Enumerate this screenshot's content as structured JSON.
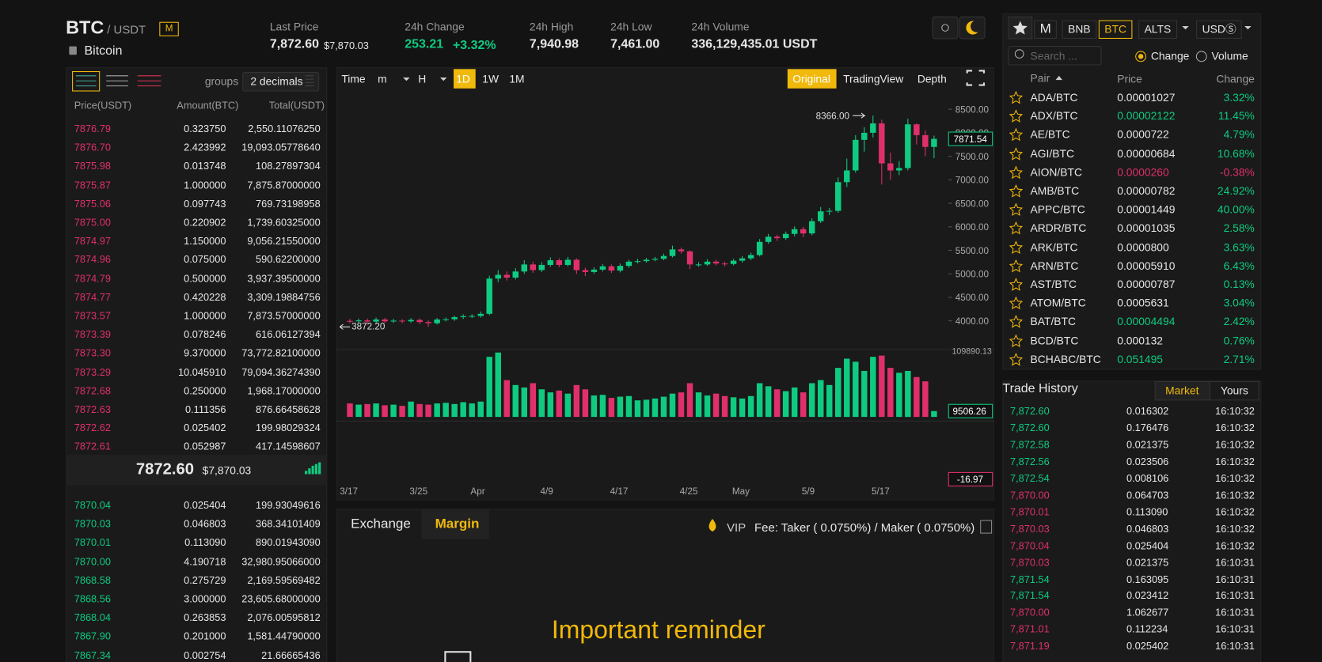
{
  "header": {
    "base": "BTC",
    "quote": "/ USDT",
    "badge": "M",
    "name": "Bitcoin",
    "stats": [
      {
        "label": "Last Price",
        "value": "7,872.60",
        "sub": "$7,870.03"
      },
      {
        "label": "24h Change",
        "value": "253.21",
        "sub": "+3.32%"
      },
      {
        "label": "24h High",
        "value": "7,940.98"
      },
      {
        "label": "24h Low",
        "value": "7,461.00"
      },
      {
        "label": "24h Volume",
        "value": "336,129,435.01 USDT"
      }
    ]
  },
  "orderbook": {
    "groups_label": "groups",
    "groups_value": "2 decimals",
    "columns": [
      "Price(USDT)",
      "Amount(BTC)",
      "Total(USDT)"
    ],
    "asks": [
      [
        "7876.79",
        "0.323750",
        "2,550.11076250"
      ],
      [
        "7876.70",
        "2.423992",
        "19,093.05778640"
      ],
      [
        "7875.98",
        "0.013748",
        "108.27897304"
      ],
      [
        "7875.87",
        "1.000000",
        "7,875.87000000"
      ],
      [
        "7875.06",
        "0.097743",
        "769.73198958"
      ],
      [
        "7875.00",
        "0.220902",
        "1,739.60325000"
      ],
      [
        "7874.97",
        "1.150000",
        "9,056.21550000"
      ],
      [
        "7874.96",
        "0.075000",
        "590.62200000"
      ],
      [
        "7874.79",
        "0.500000",
        "3,937.39500000"
      ],
      [
        "7874.77",
        "0.420228",
        "3,309.19884756"
      ],
      [
        "7873.57",
        "1.000000",
        "7,873.57000000"
      ],
      [
        "7873.39",
        "0.078246",
        "616.06127394"
      ],
      [
        "7873.30",
        "9.370000",
        "73,772.82100000"
      ],
      [
        "7873.29",
        "10.045910",
        "79,094.36274390"
      ],
      [
        "7872.68",
        "0.250000",
        "1,968.17000000"
      ],
      [
        "7872.63",
        "0.111356",
        "876.66458628"
      ],
      [
        "7872.62",
        "0.025402",
        "199.98029324"
      ],
      [
        "7872.61",
        "0.052987",
        "417.14598607"
      ]
    ],
    "last_price": "7872.60",
    "last_price_usd": "$7,870.03",
    "bids": [
      [
        "7870.04",
        "0.025404",
        "199.93049616"
      ],
      [
        "7870.03",
        "0.046803",
        "368.34101409"
      ],
      [
        "7870.01",
        "0.113090",
        "890.01943090"
      ],
      [
        "7870.00",
        "4.190718",
        "32,980.95066000"
      ],
      [
        "7868.58",
        "0.275729",
        "2,169.59569482"
      ],
      [
        "7868.56",
        "3.000000",
        "23,605.68000000"
      ],
      [
        "7868.04",
        "0.263853",
        "2,076.00595812"
      ],
      [
        "7867.90",
        "0.201000",
        "1,581.44790000"
      ],
      [
        "7867.34",
        "0.002754",
        "21.66665436"
      ]
    ]
  },
  "chart": {
    "toolbar": [
      "Time",
      "m",
      "H",
      "1D",
      "1W",
      "1M"
    ],
    "views": [
      "Original",
      "TradingView",
      "Depth"
    ],
    "up_color": "#0ecb81",
    "down_color": "#e0306b",
    "price_ylim": [
      3480,
      8890
    ],
    "price_ticks": [
      {
        "value": 4000,
        "label": "4000.00"
      },
      {
        "value": 4500,
        "label": "4500.00"
      },
      {
        "value": 5000,
        "label": "5000.00"
      },
      {
        "value": 5500,
        "label": "5500.00"
      },
      {
        "value": 6000,
        "label": "6000.00"
      },
      {
        "value": 6500,
        "label": "6500.00"
      },
      {
        "value": 7000,
        "label": "7000.00"
      },
      {
        "value": 7500,
        "label": "7500.00"
      },
      {
        "value": 8000,
        "label": "8000.00"
      },
      {
        "value": 8500,
        "label": "8500.00"
      }
    ],
    "high_label": "8366.00",
    "low_label": "3872.20",
    "macd_current": "-16.97",
    "volume_ylim": [
      0,
      109890.13
    ],
    "dates": [
      "3/17",
      null,
      null,
      null,
      null,
      null,
      null,
      null,
      "3/25",
      null,
      null,
      null,
      null,
      null,
      null,
      "Apr",
      null,
      null,
      null,
      null,
      null,
      null,
      null,
      "4/9",
      null,
      null,
      null,
      null,
      null,
      null,
      null,
      "4/17",
      null,
      null,
      null,
      null,
      null,
      null,
      null,
      "4/25",
      null,
      null,
      null,
      null,
      null,
      "May",
      null,
      null,
      null,
      null,
      null,
      null,
      null,
      "5/9",
      null,
      null,
      null,
      null,
      null,
      null,
      null,
      "5/17",
      null,
      null,
      null,
      null,
      null,
      null
    ],
    "open": [
      4000,
      3990,
      4010,
      3985,
      4030,
      3990,
      4005,
      3990,
      4020,
      3975,
      3950,
      4030,
      4035,
      4080,
      4100,
      4105,
      4150,
      4900,
      4980,
      4920,
      5050,
      5200,
      5080,
      5190,
      5290,
      5190,
      5300,
      5080,
      5040,
      5090,
      5160,
      5070,
      5170,
      5260,
      5270,
      5300,
      5320,
      5380,
      5520,
      5480,
      5200,
      5200,
      5260,
      5220,
      5210,
      5280,
      5330,
      5400,
      5680,
      5790,
      5760,
      5850,
      5950,
      5860,
      6120,
      6330,
      6340,
      6950,
      7200,
      7850,
      8000,
      8200,
      7350,
      7200,
      7250,
      8180,
      7950,
      7700
    ],
    "high": [
      4040,
      4050,
      4050,
      4070,
      4060,
      4045,
      4040,
      4060,
      4050,
      4010,
      4060,
      4070,
      4110,
      4140,
      4140,
      4200,
      4960,
      5080,
      5050,
      5120,
      5290,
      5260,
      5250,
      5350,
      5330,
      5360,
      5330,
      5130,
      5140,
      5210,
      5200,
      5220,
      5300,
      5320,
      5340,
      5360,
      5430,
      5600,
      5560,
      5500,
      5250,
      5310,
      5300,
      5260,
      5320,
      5380,
      5450,
      5740,
      5850,
      5830,
      5900,
      6010,
      6000,
      6180,
      6420,
      6400,
      7050,
      7450,
      7950,
      8120,
      8366,
      8280,
      7580,
      7400,
      8300,
      8200,
      8050,
      7940.98
    ],
    "low": [
      3950,
      3950,
      3940,
      3950,
      3950,
      3955,
      3950,
      3960,
      3930,
      3872.2,
      3920,
      3990,
      4000,
      4040,
      4060,
      4070,
      4120,
      4820,
      4860,
      4880,
      5000,
      5020,
      5040,
      5150,
      5140,
      5160,
      5000,
      4950,
      5000,
      5050,
      5020,
      5030,
      5130,
      5220,
      5240,
      5270,
      5290,
      5350,
      5430,
      5100,
      5150,
      5170,
      5180,
      5160,
      5180,
      5240,
      5290,
      5370,
      5640,
      5700,
      5720,
      5800,
      5780,
      5820,
      6080,
      6250,
      6300,
      6850,
      7150,
      7600,
      7900,
      6900,
      7000,
      7100,
      7200,
      7750,
      7500,
      7461
    ],
    "close": [
      3990,
      4010,
      3985,
      4030,
      3990,
      4005,
      3990,
      4020,
      3975,
      3950,
      4030,
      4035,
      4080,
      4100,
      4105,
      4150,
      4900,
      4980,
      4920,
      5050,
      5200,
      5080,
      5190,
      5290,
      5190,
      5300,
      5080,
      5040,
      5090,
      5160,
      5070,
      5170,
      5260,
      5270,
      5300,
      5320,
      5380,
      5520,
      5480,
      5200,
      5200,
      5260,
      5220,
      5210,
      5280,
      5330,
      5400,
      5680,
      5790,
      5760,
      5850,
      5950,
      5860,
      6120,
      6330,
      6340,
      6950,
      7200,
      7850,
      8000,
      8200,
      7350,
      7200,
      7250,
      8180,
      7950,
      7700,
      7871.54
    ],
    "volume": [
      22000,
      20000,
      21000,
      22000,
      19000,
      20000,
      18000,
      25000,
      21000,
      20000,
      22000,
      23000,
      21000,
      24000,
      22000,
      25000,
      98000,
      105000,
      60000,
      52000,
      48000,
      55000,
      45000,
      40000,
      43000,
      38000,
      52000,
      45000,
      35000,
      36000,
      31000,
      33000,
      34000,
      27000,
      28000,
      30000,
      33000,
      38000,
      40000,
      55000,
      40000,
      35000,
      38000,
      34000,
      32000,
      30000,
      34000,
      55000,
      50000,
      45000,
      42000,
      48000,
      40000,
      55000,
      60000,
      52000,
      80000,
      95000,
      90000,
      75000,
      98000,
      100000,
      80000,
      72000,
      75000,
      65000,
      58000,
      9506.26
    ]
  },
  "tabs": {
    "items": [
      "Exchange",
      "Margin"
    ],
    "vip": "VIP",
    "fee": "Fee: Taker ( 0.0750%) / Maker ( 0.0750%)"
  },
  "reminder": "Important reminder",
  "markets": {
    "tabs": [
      "M",
      "BNB",
      "BTC",
      "ALTS",
      "USDⓈ"
    ],
    "search": "Search ...",
    "radio": [
      "Change",
      "Volume"
    ],
    "columns": [
      "Pair",
      "Price",
      "Change"
    ],
    "rows": [
      {
        "pair": "ADA/BTC",
        "price": "0.00001027",
        "change": "3.32%",
        "color": "#e8e8e8"
      },
      {
        "pair": "ADX/BTC",
        "price": "0.00002122",
        "change": "11.45%",
        "color": "#0ecb81"
      },
      {
        "pair": "AE/BTC",
        "price": "0.0000722",
        "change": "4.79%",
        "color": "#e8e8e8"
      },
      {
        "pair": "AGI/BTC",
        "price": "0.00000684",
        "change": "10.68%",
        "color": "#e8e8e8"
      },
      {
        "pair": "AION/BTC",
        "price": "0.0000260",
        "change": "-0.38%",
        "color": "#e0306b"
      },
      {
        "pair": "AMB/BTC",
        "price": "0.00000782",
        "change": "24.92%",
        "color": "#e8e8e8"
      },
      {
        "pair": "APPC/BTC",
        "price": "0.00001449",
        "change": "40.00%",
        "color": "#e8e8e8"
      },
      {
        "pair": "ARDR/BTC",
        "price": "0.00001035",
        "change": "2.58%",
        "color": "#e8e8e8"
      },
      {
        "pair": "ARK/BTC",
        "price": "0.0000800",
        "change": "3.63%",
        "color": "#e8e8e8"
      },
      {
        "pair": "ARN/BTC",
        "price": "0.00005910",
        "change": "6.43%",
        "color": "#e8e8e8"
      },
      {
        "pair": "AST/BTC",
        "price": "0.00000787",
        "change": "0.13%",
        "color": "#e8e8e8"
      },
      {
        "pair": "ATOM/BTC",
        "price": "0.0005631",
        "change": "3.04%",
        "color": "#e8e8e8"
      },
      {
        "pair": "BAT/BTC",
        "price": "0.00004494",
        "change": "2.42%",
        "color": "#0ecb81"
      },
      {
        "pair": "BCD/BTC",
        "price": "0.000132",
        "change": "0.76%",
        "color": "#e8e8e8"
      },
      {
        "pair": "BCHABC/BTC",
        "price": "0.051495",
        "change": "2.71%",
        "color": "#0ecb81"
      }
    ]
  },
  "trades": {
    "title": "Trade History",
    "tabs": [
      "Market",
      "Yours"
    ],
    "rows": [
      {
        "price": "7,872.60",
        "amount": "0.016302",
        "time": "16:10:32",
        "color": "#0ecb81"
      },
      {
        "price": "7,872.60",
        "amount": "0.176476",
        "time": "16:10:32",
        "color": "#0ecb81"
      },
      {
        "price": "7,872.58",
        "amount": "0.021375",
        "time": "16:10:32",
        "color": "#0ecb81"
      },
      {
        "price": "7,872.56",
        "amount": "0.023506",
        "time": "16:10:32",
        "color": "#0ecb81"
      },
      {
        "price": "7,872.54",
        "amount": "0.008106",
        "time": "16:10:32",
        "color": "#0ecb81"
      },
      {
        "price": "7,870.00",
        "amount": "0.064703",
        "time": "16:10:32",
        "color": "#e0306b"
      },
      {
        "price": "7,870.01",
        "amount": "0.113090",
        "time": "16:10:32",
        "color": "#e0306b"
      },
      {
        "price": "7,870.03",
        "amount": "0.046803",
        "time": "16:10:32",
        "color": "#e0306b"
      },
      {
        "price": "7,870.04",
        "amount": "0.025404",
        "time": "16:10:32",
        "color": "#e0306b"
      },
      {
        "price": "7,870.03",
        "amount": "0.021375",
        "time": "16:10:31",
        "color": "#e0306b"
      },
      {
        "price": "7,871.54",
        "amount": "0.163095",
        "time": "16:10:31",
        "color": "#0ecb81"
      },
      {
        "price": "7,871.54",
        "amount": "0.023412",
        "time": "16:10:31",
        "color": "#0ecb81"
      },
      {
        "price": "7,870.00",
        "amount": "1.062677",
        "time": "16:10:31",
        "color": "#e0306b"
      },
      {
        "price": "7,871.01",
        "amount": "0.112234",
        "time": "16:10:31",
        "color": "#e0306b"
      },
      {
        "price": "7,871.19",
        "amount": "0.025402",
        "time": "16:10:31",
        "color": "#e0306b"
      }
    ]
  }
}
